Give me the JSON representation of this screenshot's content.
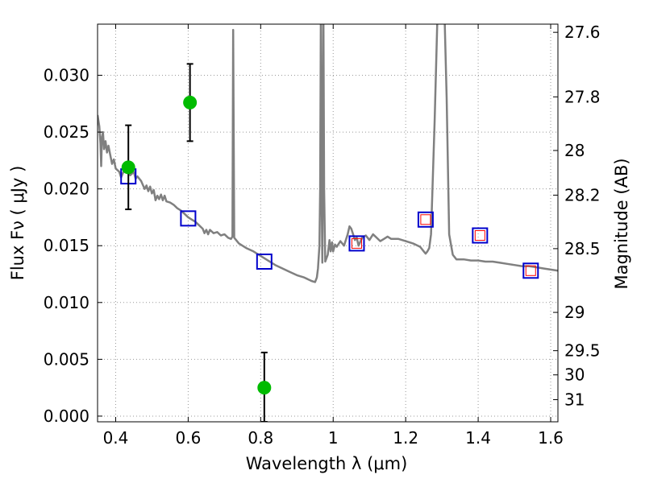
{
  "chart_data": {
    "type": "scatter",
    "xlabel": "Wavelength  λ (μm)",
    "ylabel": "Flux  Fν  ( μJy )",
    "ylabel_right": "Magnitude (AB)",
    "xlim": [
      0.35,
      1.62
    ],
    "ylim": [
      -0.0005,
      0.0345
    ],
    "grid": true,
    "x_ticks": [
      {
        "value": 0.4,
        "label": "0.4"
      },
      {
        "value": 0.6,
        "label": "0.6"
      },
      {
        "value": 0.8,
        "label": "0.8"
      },
      {
        "value": 1.0,
        "label": "1"
      },
      {
        "value": 1.2,
        "label": "1.2"
      },
      {
        "value": 1.4,
        "label": "1.4"
      },
      {
        "value": 1.6,
        "label": "1.6"
      }
    ],
    "y_ticks": [
      {
        "value": 0.0,
        "label": "0.000"
      },
      {
        "value": 0.005,
        "label": "0.005"
      },
      {
        "value": 0.01,
        "label": "0.010"
      },
      {
        "value": 0.015,
        "label": "0.015"
      },
      {
        "value": 0.02,
        "label": "0.020"
      },
      {
        "value": 0.025,
        "label": "0.025"
      },
      {
        "value": 0.03,
        "label": "0.030"
      }
    ],
    "right_ticks": [
      {
        "flux": 0.03378,
        "label": "27.6"
      },
      {
        "flux": 0.0281,
        "label": "27.8"
      },
      {
        "flux": 0.02338,
        "label": "28"
      },
      {
        "flux": 0.01945,
        "label": "28.2"
      },
      {
        "flux": 0.01474,
        "label": "28.5"
      },
      {
        "flux": 0.00913,
        "label": "29"
      },
      {
        "flux": 0.00576,
        "label": "29.5"
      },
      {
        "flux": 0.00363,
        "label": "30"
      },
      {
        "flux": 0.00145,
        "label": "31"
      }
    ],
    "colors": {
      "template": "#808080",
      "observed": "#00bb00",
      "model_box": "#0000cc",
      "model_inner": "#ff0000",
      "errorbar": "#000000",
      "grid": "#999999"
    },
    "series": [
      {
        "kind": "line",
        "points": [
          [
            0.35,
            0.0265
          ],
          [
            0.355,
            0.0255
          ],
          [
            0.358,
            0.024
          ],
          [
            0.36,
            0.022
          ],
          [
            0.362,
            0.0245
          ],
          [
            0.365,
            0.025
          ],
          [
            0.368,
            0.0235
          ],
          [
            0.372,
            0.0242
          ],
          [
            0.376,
            0.0232
          ],
          [
            0.38,
            0.0238
          ],
          [
            0.385,
            0.023
          ],
          [
            0.39,
            0.0222
          ],
          [
            0.395,
            0.0226
          ],
          [
            0.4,
            0.0218
          ],
          [
            0.41,
            0.0215
          ],
          [
            0.415,
            0.021
          ],
          [
            0.42,
            0.0214
          ],
          [
            0.43,
            0.022
          ],
          [
            0.44,
            0.0212
          ],
          [
            0.45,
            0.0215
          ],
          [
            0.455,
            0.0209
          ],
          [
            0.46,
            0.0211
          ],
          [
            0.47,
            0.0207
          ],
          [
            0.48,
            0.02
          ],
          [
            0.485,
            0.0203
          ],
          [
            0.49,
            0.0198
          ],
          [
            0.495,
            0.0202
          ],
          [
            0.5,
            0.0196
          ],
          [
            0.505,
            0.0199
          ],
          [
            0.51,
            0.019
          ],
          [
            0.515,
            0.0194
          ],
          [
            0.52,
            0.0191
          ],
          [
            0.525,
            0.0195
          ],
          [
            0.53,
            0.019
          ],
          [
            0.535,
            0.0194
          ],
          [
            0.54,
            0.0189
          ],
          [
            0.55,
            0.0188
          ],
          [
            0.56,
            0.0186
          ],
          [
            0.57,
            0.0183
          ],
          [
            0.58,
            0.0181
          ],
          [
            0.59,
            0.0178
          ],
          [
            0.6,
            0.0175
          ],
          [
            0.61,
            0.0173
          ],
          [
            0.62,
            0.0171
          ],
          [
            0.63,
            0.0168
          ],
          [
            0.64,
            0.0165
          ],
          [
            0.645,
            0.0161
          ],
          [
            0.65,
            0.0164
          ],
          [
            0.655,
            0.016
          ],
          [
            0.66,
            0.0164
          ],
          [
            0.67,
            0.0161
          ],
          [
            0.68,
            0.0162
          ],
          [
            0.69,
            0.0159
          ],
          [
            0.7,
            0.016
          ],
          [
            0.71,
            0.0157
          ],
          [
            0.718,
            0.0156
          ],
          [
            0.722,
            0.0158
          ],
          [
            0.724,
            0.034
          ],
          [
            0.727,
            0.0157
          ],
          [
            0.74,
            0.0152
          ],
          [
            0.76,
            0.0148
          ],
          [
            0.78,
            0.0145
          ],
          [
            0.8,
            0.0141
          ],
          [
            0.82,
            0.0137
          ],
          [
            0.84,
            0.0133
          ],
          [
            0.86,
            0.013
          ],
          [
            0.88,
            0.0127
          ],
          [
            0.9,
            0.0124
          ],
          [
            0.92,
            0.0122
          ],
          [
            0.94,
            0.0119
          ],
          [
            0.95,
            0.0118
          ],
          [
            0.955,
            0.0122
          ],
          [
            0.958,
            0.013
          ],
          [
            0.962,
            0.015
          ],
          [
            0.964,
            0.02
          ],
          [
            0.966,
            0.036
          ],
          [
            0.968,
            0.02
          ],
          [
            0.97,
            0.0135
          ],
          [
            0.973,
            0.036
          ],
          [
            0.975,
            0.02
          ],
          [
            0.978,
            0.0136
          ],
          [
            0.985,
            0.0142
          ],
          [
            0.99,
            0.0155
          ],
          [
            0.993,
            0.0145
          ],
          [
            0.997,
            0.0153
          ],
          [
            1.0,
            0.0145
          ],
          [
            1.005,
            0.0151
          ],
          [
            1.01,
            0.0149
          ],
          [
            1.02,
            0.0154
          ],
          [
            1.03,
            0.015
          ],
          [
            1.04,
            0.016
          ],
          [
            1.045,
            0.0167
          ],
          [
            1.05,
            0.0165
          ],
          [
            1.055,
            0.016
          ],
          [
            1.06,
            0.0155
          ],
          [
            1.065,
            0.0157
          ],
          [
            1.07,
            0.015
          ],
          [
            1.08,
            0.0157
          ],
          [
            1.09,
            0.0159
          ],
          [
            1.1,
            0.0155
          ],
          [
            1.11,
            0.016
          ],
          [
            1.12,
            0.0157
          ],
          [
            1.13,
            0.0154
          ],
          [
            1.14,
            0.0156
          ],
          [
            1.15,
            0.0158
          ],
          [
            1.16,
            0.0156
          ],
          [
            1.18,
            0.0156
          ],
          [
            1.2,
            0.0154
          ],
          [
            1.22,
            0.0152
          ],
          [
            1.24,
            0.0149
          ],
          [
            1.25,
            0.0145
          ],
          [
            1.255,
            0.0143
          ],
          [
            1.26,
            0.0145
          ],
          [
            1.265,
            0.0148
          ],
          [
            1.27,
            0.016
          ],
          [
            1.28,
            0.026
          ],
          [
            1.29,
            0.038
          ],
          [
            1.305,
            0.038
          ],
          [
            1.313,
            0.028
          ],
          [
            1.32,
            0.016
          ],
          [
            1.33,
            0.0142
          ],
          [
            1.34,
            0.0138
          ],
          [
            1.36,
            0.0138
          ],
          [
            1.38,
            0.0137
          ],
          [
            1.4,
            0.0137
          ],
          [
            1.42,
            0.0136
          ],
          [
            1.44,
            0.0136
          ],
          [
            1.46,
            0.0135
          ],
          [
            1.48,
            0.0134
          ],
          [
            1.5,
            0.0133
          ],
          [
            1.52,
            0.0132
          ],
          [
            1.54,
            0.0132
          ],
          [
            1.56,
            0.0131
          ],
          [
            1.58,
            0.013
          ],
          [
            1.6,
            0.0129
          ],
          [
            1.62,
            0.0128
          ]
        ]
      },
      {
        "kind": "model_photometry",
        "points": [
          {
            "x": 0.435,
            "y": 0.0211,
            "inner": false
          },
          {
            "x": 0.6,
            "y": 0.0174,
            "inner": false
          },
          {
            "x": 0.81,
            "y": 0.0136,
            "inner": false
          },
          {
            "x": 1.065,
            "y": 0.0152,
            "inner": true
          },
          {
            "x": 1.255,
            "y": 0.0173,
            "inner": true
          },
          {
            "x": 1.405,
            "y": 0.0159,
            "inner": true
          },
          {
            "x": 1.545,
            "y": 0.0128,
            "inner": true
          }
        ]
      },
      {
        "kind": "observed",
        "points": [
          {
            "x": 0.435,
            "y": 0.0219,
            "yerr_low": 0.0182,
            "yerr_high": 0.0256
          },
          {
            "x": 0.605,
            "y": 0.0276,
            "yerr_low": 0.0242,
            "yerr_high": 0.031
          },
          {
            "x": 0.81,
            "y": 0.0025,
            "yerr_low": -0.0005,
            "yerr_high": 0.0056
          }
        ]
      }
    ]
  }
}
